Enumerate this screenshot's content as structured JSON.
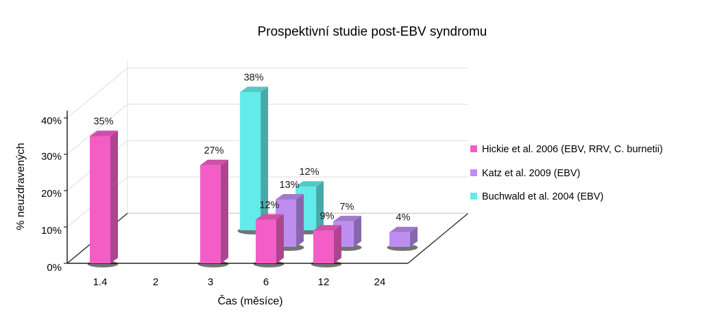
{
  "chart_data": {
    "type": "bar",
    "title": "Prospektivní studie post-EBV syndromu",
    "xlabel": "Čas (měsíce)",
    "ylabel": "% neuzdravených",
    "ylim": [
      0,
      40
    ],
    "yticks": [
      "0%",
      "10%",
      "20%",
      "30%",
      "40%"
    ],
    "categories": [
      "1.4",
      "2",
      "3",
      "6",
      "12",
      "24"
    ],
    "grid": true,
    "legend_position": "right",
    "series": [
      {
        "name": "Hickie et al. 2006 (EBV, RRV, C. burnetii)",
        "color": "#f25ec6",
        "values": [
          35,
          null,
          27,
          12,
          9,
          null
        ],
        "labels": [
          "35%",
          "",
          "27%",
          "12%",
          "9%",
          ""
        ]
      },
      {
        "name": "Katz et al. 2009 (EBV)",
        "color": "#bd8ef0",
        "values": [
          null,
          null,
          null,
          13,
          7,
          4
        ],
        "labels": [
          "",
          "",
          "",
          "13%",
          "7%",
          "4%"
        ]
      },
      {
        "name": "Buchwald et al. 2004 (EBV)",
        "color": "#62ece9",
        "values": [
          null,
          null,
          38,
          12,
          null,
          null
        ],
        "labels": [
          "",
          "",
          "38%",
          "12%",
          "",
          ""
        ]
      }
    ]
  }
}
